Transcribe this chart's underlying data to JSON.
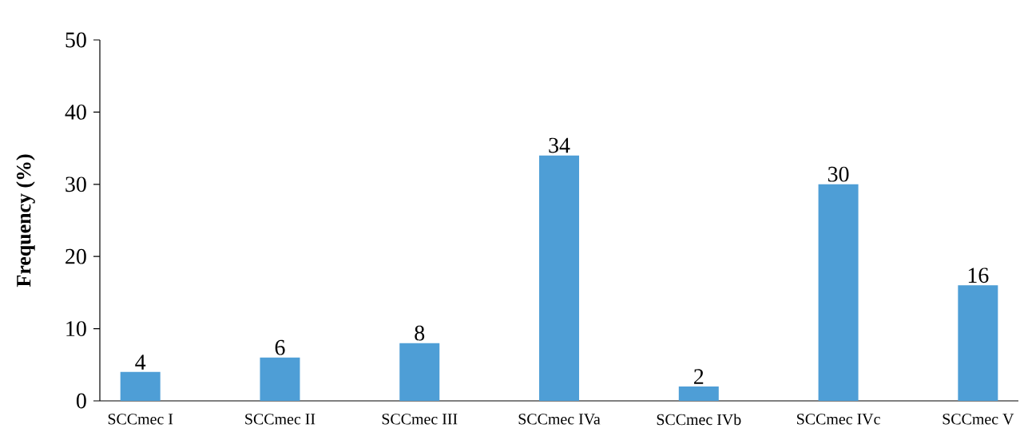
{
  "chart_data": {
    "type": "bar",
    "ylabel": "Frequency (%)",
    "categories": [
      "SCCmec I",
      "SCCmec II",
      "SCCmec III",
      "SCCmec IVa",
      "SCCmec IVb",
      "SCCmec IVc",
      "SCCmec V"
    ],
    "values": [
      4,
      6,
      8,
      34,
      2,
      30,
      16
    ],
    "color": "#4e9ed6",
    "ylim": [
      0,
      50
    ],
    "yticks": [
      0,
      10,
      20,
      30,
      40,
      50
    ],
    "grid": false,
    "data_labels": true
  }
}
